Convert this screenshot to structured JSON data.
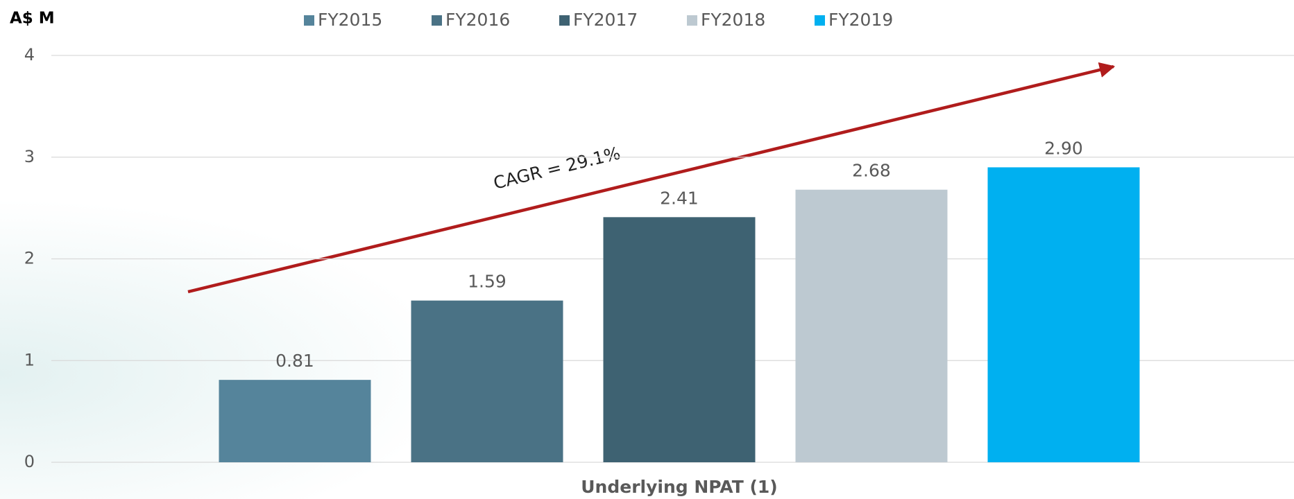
{
  "chart_data": {
    "type": "bar",
    "y_label": "A$ M",
    "annotation": "CAGR = 29.1%",
    "categories": [
      "Underlying NPAT (1)"
    ],
    "series": [
      {
        "name": "FY2015",
        "color": "#55849b",
        "values": [
          0.81
        ],
        "value_labels": [
          "0.81"
        ]
      },
      {
        "name": "FY2016",
        "color": "#4a7285",
        "values": [
          1.59
        ],
        "value_labels": [
          "1.59"
        ]
      },
      {
        "name": "FY2017",
        "color": "#3e6272",
        "values": [
          2.41
        ],
        "value_labels": [
          "2.41"
        ]
      },
      {
        "name": "FY2018",
        "color": "#bdc9d1",
        "values": [
          2.68
        ],
        "value_labels": [
          "2.68"
        ]
      },
      {
        "name": "FY2019",
        "color": "#00b0f0",
        "values": [
          2.9
        ],
        "value_labels": [
          "2.90"
        ]
      }
    ],
    "ylim": [
      0,
      4
    ],
    "yticks": [
      0,
      1,
      2,
      3,
      4
    ],
    "grid": true,
    "legend": "top"
  }
}
